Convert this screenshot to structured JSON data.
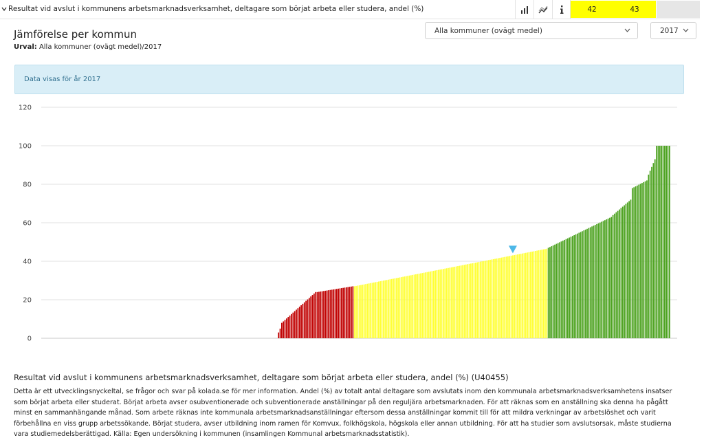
{
  "topbar": {
    "title": "Resultat vid avslut i kommunens arbetsmarknadsverksamhet, deltagare som börjat arbeta eller studera, andel (%)",
    "icons": [
      "bar-chart-icon",
      "trend-icon",
      "info-icon"
    ],
    "value_1": "42",
    "value_2": "43",
    "highlight_color": "#ffff00"
  },
  "header": {
    "title": "Jämförelse per kommun",
    "selection_label": "Urval:",
    "selection_value": "Alla kommuner (ovägt medel)/2017"
  },
  "filters": {
    "municipality": "Alla kommuner (ovägt medel)",
    "year": "2017"
  },
  "info_box": {
    "text": "Data visas för år 2017",
    "background": "#d9eef7",
    "text_color": "#31708f"
  },
  "chart_data": {
    "type": "bar",
    "ylim": [
      0,
      120
    ],
    "yticks": [
      0,
      20,
      40,
      60,
      80,
      100,
      120
    ],
    "grid": true,
    "xlabel": "",
    "ylabel": "",
    "colors": {
      "red": "#c00000",
      "yellow": "#ffff33",
      "green": "#4ca21f",
      "marker": "#4db8e8"
    },
    "marker_value": 43,
    "segments": [
      {
        "color": "red",
        "count": 2,
        "values": [
          3,
          5
        ]
      },
      {
        "color": "red",
        "count": 22,
        "from": 8,
        "to": 24
      },
      {
        "color": "red",
        "count": 23,
        "from": 24,
        "to": 27
      },
      {
        "color": "yellow",
        "count": 120,
        "from": 27,
        "to": 46.5
      },
      {
        "color": "green",
        "count": 40,
        "from": 47,
        "to": 63
      },
      {
        "color": "green",
        "count": 12,
        "from": 64,
        "to": 72
      },
      {
        "color": "green",
        "count": 10,
        "from": 78,
        "to": 82
      },
      {
        "color": "green",
        "count": 5,
        "from": 85,
        "to": 93
      },
      {
        "color": "green",
        "count": 9,
        "values": [
          100,
          100,
          100,
          100,
          100,
          100,
          100,
          100,
          100
        ]
      }
    ]
  },
  "description": {
    "title": "Resultat vid avslut i kommunens arbetsmarknadsverksamhet, deltagare som börjat arbeta eller studera, andel (%) (U40455)",
    "text": "Detta är ett utvecklingsnyckeltal, se frågor och svar på kolada.se för mer information. Andel (%) av totalt antal deltagare som avslutats inom den kommunala arbetsmarknadsverksamhetens insatser som börjat arbeta eller studerat. Börjat arbeta avser osubventionerade och subventionerade anställningar på den reguljära arbetsmarknaden. För att räknas som en anställning ska denna ha pågått minst en sammanhängande månad. Som arbete räknas inte kommunala arbetsmarknadsanställningar eftersom dessa anställningar kommit till för att mildra verkningar av arbetslöshet och varit förbehållna en viss grupp arbetssökande. Börjat studera, avser utbildning inom ramen för Komvux, folkhögskola, högskola eller annan utbildning. För att ha studier som avslutsorsak, måste studierna vara studiemedelsberättigad. Källa: Egen undersökning i kommunen (insamlingen Kommunal arbetsmarknadsstatistik)."
  }
}
